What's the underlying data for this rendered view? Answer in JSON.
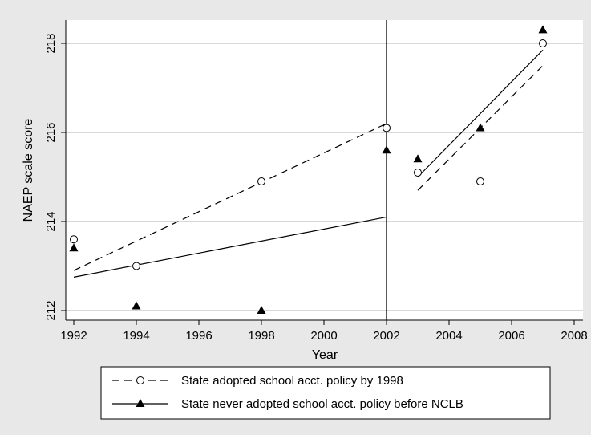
{
  "chart_data": {
    "type": "scatter",
    "title": "",
    "xlabel": "Year",
    "ylabel": "NAEP scale score",
    "xlim": [
      1992,
      2008
    ],
    "ylim": [
      212,
      218.4
    ],
    "x_ticks": [
      1992,
      1994,
      1996,
      1998,
      2000,
      2002,
      2004,
      2006,
      2008
    ],
    "y_ticks": [
      212,
      214,
      216,
      218
    ],
    "grid": "horizontal",
    "reference_line_x": 2002,
    "legend_position": "bottom",
    "series": [
      {
        "name": "State adopted school acct. policy by 1998",
        "marker": "hollow-circle",
        "line_style": "dashed",
        "points": [
          {
            "x": 1992,
            "y": 213.6
          },
          {
            "x": 1994,
            "y": 213.0
          },
          {
            "x": 1998,
            "y": 214.9
          },
          {
            "x": 2002,
            "y": 216.1
          },
          {
            "x": 2003,
            "y": 215.1
          },
          {
            "x": 2005,
            "y": 214.9
          },
          {
            "x": 2007,
            "y": 218.0
          }
        ],
        "fit_segments": [
          [
            {
              "x": 1992,
              "y": 212.9
            },
            {
              "x": 2002,
              "y": 216.2
            }
          ],
          [
            {
              "x": 2003,
              "y": 214.7
            },
            {
              "x": 2007,
              "y": 217.5
            }
          ]
        ]
      },
      {
        "name": "State never adopted school acct. policy before NCLB",
        "marker": "filled-triangle",
        "line_style": "solid",
        "points": [
          {
            "x": 1992,
            "y": 213.4
          },
          {
            "x": 1994,
            "y": 212.1
          },
          {
            "x": 1998,
            "y": 212.0
          },
          {
            "x": 2002,
            "y": 215.6
          },
          {
            "x": 2003,
            "y": 215.4
          },
          {
            "x": 2005,
            "y": 216.1
          },
          {
            "x": 2007,
            "y": 218.3
          }
        ],
        "fit_segments": [
          [
            {
              "x": 1992,
              "y": 212.75
            },
            {
              "x": 2002,
              "y": 214.1
            }
          ],
          [
            {
              "x": 2003,
              "y": 215.0
            },
            {
              "x": 2007,
              "y": 217.85
            }
          ]
        ]
      }
    ]
  }
}
